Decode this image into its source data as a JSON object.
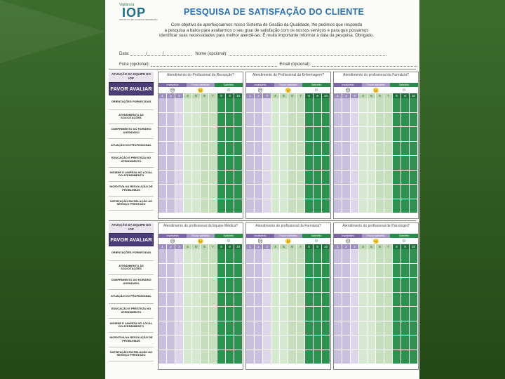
{
  "header": {
    "logo_tagline": "Vigilância",
    "logo_text": "IOP",
    "logo_subtitle": "INSTITUTO DE OLHOS E PREVENÇÃO",
    "title": "PESQUISA DE SATISFAÇÃO DO CLIENTE"
  },
  "intro": {
    "line1": "Com objetivo de aperfeiçoarmos nosso Sistema de Gestão da Qualidade, lhe pedimos que responda",
    "line2": "a pesquisa a baixo para avaliarmos o seu grau de satisfação com os nossos serviços e para que possamos",
    "line3": "identificar suas necessidades para melhor atendê-las. É muito importante informar a data da pesquisa. Obrigado."
  },
  "fields": {
    "date_label": "Data:",
    "date_sep1": "/",
    "date_sep2": "/",
    "name_label": "Nome (opcional):",
    "phone_label": "Fone (opcional):",
    "email_label": "Email (opcional):"
  },
  "left_col": {
    "head": "ATUAÇÃO DA EQUIPE DO IOP",
    "avaliar": "FAVOR AVALIAR",
    "rows": [
      "ORIENTAÇÕES FORNECIDAS",
      "ATENDIMENTO ÀS SOLICITAÇÕES",
      "CUMPRIMENTO DO HORÁRIO AGENDADO",
      "ATUAÇÃO DO PROFISSIONAL",
      "EDUCAÇÃO E PRESTEZA NO ATENDIMENTO",
      "HIGIENE E LIMPEZA NO LOCAL DO ATENDIMENTO",
      "INCENTIVA NA RESOLUÇÃO DE PROBLEMAS",
      "SATISFAÇÃO EM RELAÇÃO AO SERVIÇO PRESTADO"
    ]
  },
  "scale": {
    "insat": "Insatisfeito",
    "pouco": "Pouco satisfeito",
    "sat": "Satisfeito",
    "faces": [
      "☹",
      "😐",
      "☺"
    ],
    "numbers": [
      "1",
      "2",
      "3",
      "4",
      "5",
      "6",
      "7",
      "8",
      "9",
      "10"
    ]
  },
  "block1": {
    "sections": [
      "Atendimento do Profissional da Recepção?",
      "Atendimento do Profissional da Enfermagem?",
      "Atendimento do profissional da Farmácia?"
    ]
  },
  "block2": {
    "sections": [
      "Atendimento do profissional da Equipe Médica?",
      "Atendimento do profissional da Farmácia?",
      "Atendimento do profissional de Psicologia?"
    ]
  }
}
